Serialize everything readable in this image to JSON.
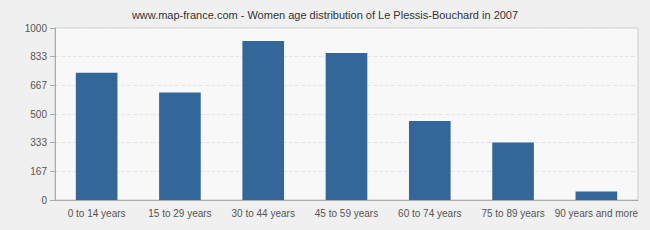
{
  "chart_data": {
    "type": "bar",
    "title": "www.map-france.com - Women age distribution of Le Plessis-Bouchard in 2007",
    "categories": [
      "0 to 14 years",
      "15 to 29 years",
      "30 to 44 years",
      "45 to 59 years",
      "60 to 74 years",
      "75 to 89 years",
      "90 years and more"
    ],
    "values": [
      740,
      625,
      925,
      855,
      460,
      335,
      50
    ],
    "color": "#336699",
    "ylim": [
      0,
      1000
    ],
    "yticks": [
      0,
      167,
      333,
      500,
      667,
      833,
      1000
    ],
    "grid": true
  }
}
